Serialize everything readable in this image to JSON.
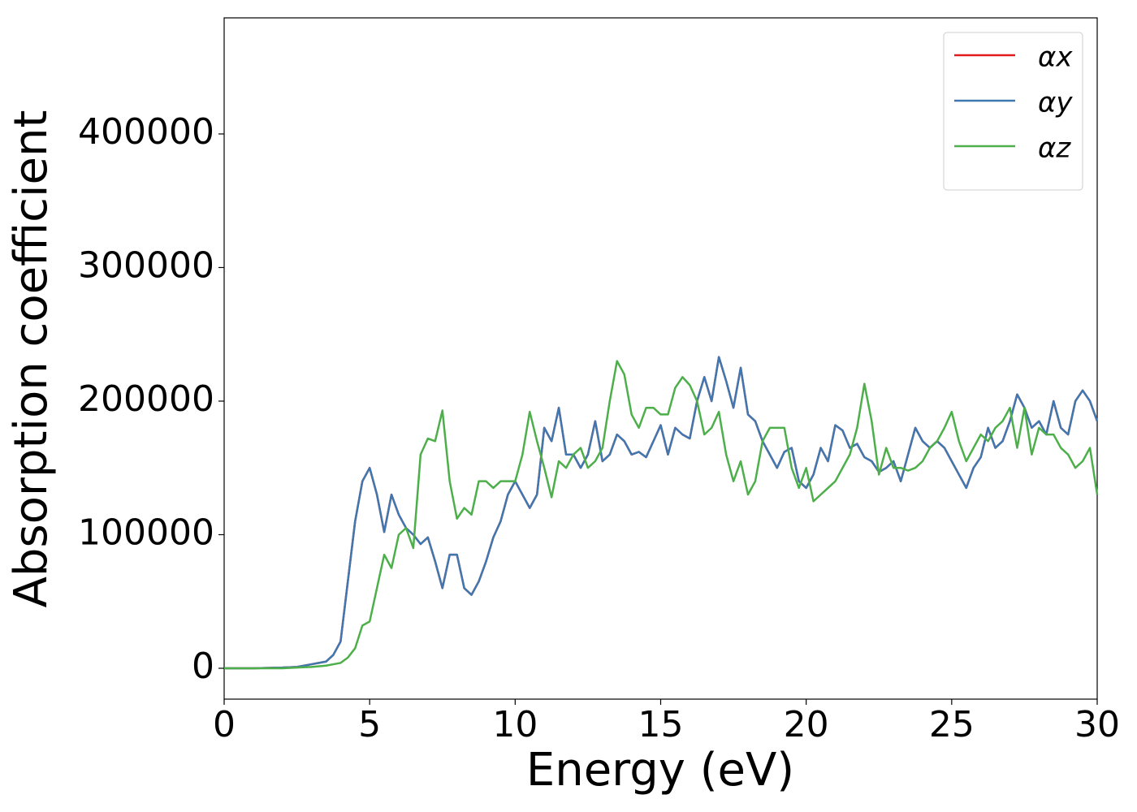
{
  "chart_data": {
    "type": "line",
    "xlabel": "Energy (eV)",
    "ylabel": "Absorption coefficient",
    "x": [
      0,
      1,
      2,
      2.5,
      3,
      3.5,
      3.75,
      4,
      4.25,
      4.5,
      4.75,
      5,
      5.25,
      5.5,
      5.75,
      6,
      6.25,
      6.5,
      6.75,
      7,
      7.25,
      7.5,
      7.75,
      8,
      8.25,
      8.5,
      8.75,
      9,
      9.25,
      9.5,
      9.75,
      10,
      10.25,
      10.5,
      10.75,
      11,
      11.25,
      11.5,
      11.75,
      12,
      12.25,
      12.5,
      12.75,
      13,
      13.25,
      13.5,
      13.75,
      14,
      14.25,
      14.5,
      14.75,
      15,
      15.25,
      15.5,
      15.75,
      16,
      16.25,
      16.5,
      16.75,
      17,
      17.25,
      17.5,
      17.75,
      18,
      18.25,
      18.5,
      18.75,
      19,
      19.25,
      19.5,
      19.75,
      20,
      20.25,
      20.5,
      20.75,
      21,
      21.25,
      21.5,
      21.75,
      22,
      22.25,
      22.5,
      22.75,
      23,
      23.25,
      23.5,
      23.75,
      24,
      24.25,
      24.5,
      24.75,
      25,
      25.25,
      25.5,
      25.75,
      26,
      26.25,
      26.5,
      26.75,
      27,
      27.25,
      27.5,
      27.75,
      28,
      28.25,
      28.5,
      28.75,
      29,
      29.25,
      29.5,
      29.75,
      30
    ],
    "series": [
      {
        "name": "αx",
        "color": "#e41a1c",
        "values": [
          0,
          0,
          500,
          1000,
          3000,
          5000,
          10000,
          20000,
          65000,
          110000,
          140000,
          150000,
          130000,
          102000,
          130000,
          115000,
          105000,
          100000,
          93000,
          98000,
          80000,
          60000,
          85000,
          85000,
          60000,
          55000,
          65000,
          80000,
          98000,
          110000,
          130000,
          140000,
          130000,
          120000,
          130000,
          180000,
          170000,
          195000,
          160000,
          160000,
          150000,
          160000,
          185000,
          155000,
          160000,
          175000,
          170000,
          160000,
          162000,
          158000,
          170000,
          182000,
          160000,
          180000,
          175000,
          172000,
          200000,
          218000,
          200000,
          233000,
          215000,
          195000,
          225000,
          190000,
          185000,
          170000,
          160000,
          150000,
          162000,
          165000,
          140000,
          135000,
          145000,
          165000,
          155000,
          182000,
          178000,
          165000,
          168000,
          158000,
          155000,
          147000,
          150000,
          155000,
          140000,
          160000,
          180000,
          170000,
          165000,
          170000,
          165000,
          155000,
          145000,
          135000,
          150000,
          158000,
          180000,
          165000,
          170000,
          185000,
          205000,
          195000,
          180000,
          185000,
          175000,
          200000,
          180000,
          175000,
          200000,
          208000,
          200000,
          185000
        ]
      },
      {
        "name": "αy",
        "color": "#3f78b0",
        "values": [
          0,
          0,
          500,
          1000,
          3000,
          5000,
          10000,
          20000,
          65000,
          110000,
          140000,
          150000,
          130000,
          102000,
          130000,
          115000,
          105000,
          100000,
          93000,
          98000,
          80000,
          60000,
          85000,
          85000,
          60000,
          55000,
          65000,
          80000,
          98000,
          110000,
          130000,
          140000,
          130000,
          120000,
          130000,
          180000,
          170000,
          195000,
          160000,
          160000,
          150000,
          160000,
          185000,
          155000,
          160000,
          175000,
          170000,
          160000,
          162000,
          158000,
          170000,
          182000,
          160000,
          180000,
          175000,
          172000,
          200000,
          218000,
          200000,
          233000,
          215000,
          195000,
          225000,
          190000,
          185000,
          170000,
          160000,
          150000,
          162000,
          165000,
          140000,
          135000,
          145000,
          165000,
          155000,
          182000,
          178000,
          165000,
          168000,
          158000,
          155000,
          147000,
          150000,
          155000,
          140000,
          160000,
          180000,
          170000,
          165000,
          170000,
          165000,
          155000,
          145000,
          135000,
          150000,
          158000,
          180000,
          165000,
          170000,
          185000,
          205000,
          195000,
          180000,
          185000,
          175000,
          200000,
          180000,
          175000,
          200000,
          208000,
          200000,
          185000
        ]
      },
      {
        "name": "αz",
        "color": "#4daf4a",
        "values": [
          0,
          0,
          0,
          500,
          1000,
          2000,
          3000,
          4000,
          8000,
          15000,
          32000,
          35000,
          60000,
          85000,
          75000,
          100000,
          105000,
          90000,
          160000,
          172000,
          170000,
          193000,
          140000,
          112000,
          120000,
          115000,
          140000,
          140000,
          135000,
          140000,
          140000,
          140000,
          160000,
          192000,
          170000,
          150000,
          128000,
          155000,
          150000,
          160000,
          165000,
          150000,
          155000,
          165000,
          200000,
          230000,
          220000,
          190000,
          180000,
          195000,
          195000,
          190000,
          190000,
          210000,
          218000,
          212000,
          200000,
          175000,
          180000,
          192000,
          160000,
          140000,
          155000,
          130000,
          140000,
          170000,
          180000,
          180000,
          180000,
          150000,
          135000,
          150000,
          125000,
          130000,
          135000,
          140000,
          150000,
          160000,
          180000,
          213000,
          185000,
          145000,
          165000,
          150000,
          150000,
          148000,
          150000,
          155000,
          165000,
          170000,
          180000,
          192000,
          170000,
          155000,
          165000,
          175000,
          170000,
          180000,
          185000,
          195000,
          165000,
          195000,
          160000,
          180000,
          175000,
          175000,
          165000,
          160000,
          150000,
          155000,
          165000,
          130000
        ]
      }
    ],
    "xlim": [
      0,
      30
    ],
    "ylim": [
      -23100,
      486900
    ],
    "xticks": [
      0,
      5,
      10,
      15,
      20,
      25,
      30
    ],
    "yticks": [
      0,
      100000,
      200000,
      300000,
      400000
    ],
    "legend": "upper right"
  }
}
